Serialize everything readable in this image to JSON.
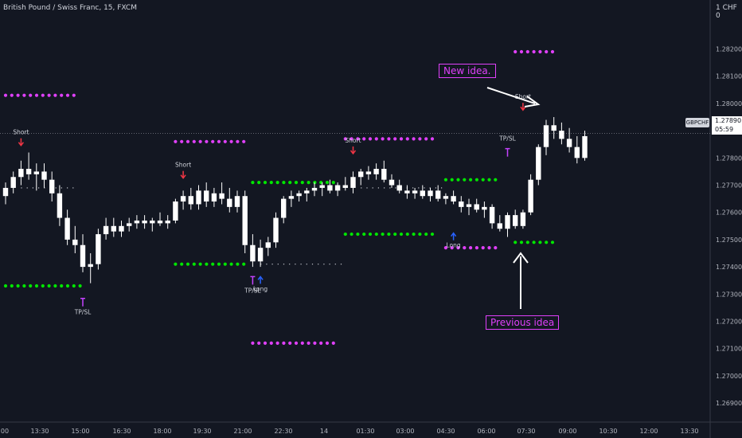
{
  "header": {
    "title": "British Pound / Swiss Franc, 15, FXCM",
    "currency": "1 CHF 0"
  },
  "price_axis": {
    "symbol": "GBPCHF",
    "last_price": "1.27890",
    "countdown": "05:59"
  },
  "annotations": {
    "new_idea": "New idea.",
    "previous_idea": "Previous idea"
  },
  "colors": {
    "background": "#131722",
    "candle": "#ffffff",
    "target_dots": "#e040fb",
    "stop_dots": "#00e600",
    "short_arrow": "#f23645",
    "long_arrow": "#2962ff",
    "tpsl_marker": "#c542ff",
    "annotation": "#e040fb"
  },
  "chart_data": {
    "type": "candlestick",
    "y_ticks": [
      "1.28200",
      "1.28100",
      "1.28000",
      "1.27900",
      "1.27800",
      "1.27700",
      "1.27600",
      "1.27500",
      "1.27400",
      "1.27300",
      "1.27200",
      "1.27100",
      "1.27000",
      "1.26900"
    ],
    "x_ticks": [
      "00",
      "13:30",
      "15:00",
      "16:30",
      "18:00",
      "19:30",
      "21:00",
      "22:30",
      "14",
      "01:30",
      "03:00",
      "04:30",
      "06:00",
      "07:30",
      "09:00",
      "10:30",
      "12:00",
      "13:30"
    ],
    "ylim": [
      1.2683,
      1.2838
    ],
    "current_price": 1.2789,
    "candles": [
      [
        1.2766,
        1.2771,
        1.2763,
        1.2769
      ],
      [
        1.2769,
        1.2775,
        1.2767,
        1.2773
      ],
      [
        1.2773,
        1.2779,
        1.277,
        1.2776
      ],
      [
        1.2776,
        1.2782,
        1.2772,
        1.2774
      ],
      [
        1.2774,
        1.2778,
        1.2768,
        1.2775
      ],
      [
        1.2775,
        1.2778,
        1.2769,
        1.2772
      ],
      [
        1.2772,
        1.2775,
        1.2764,
        1.2767
      ],
      [
        1.2767,
        1.277,
        1.2755,
        1.2758
      ],
      [
        1.2758,
        1.2761,
        1.2748,
        1.275
      ],
      [
        1.275,
        1.2755,
        1.2745,
        1.2748
      ],
      [
        1.2748,
        1.2752,
        1.2738,
        1.274
      ],
      [
        1.274,
        1.2745,
        1.2734,
        1.2741
      ],
      [
        1.2741,
        1.2754,
        1.2739,
        1.2752
      ],
      [
        1.2752,
        1.2758,
        1.275,
        1.2755
      ],
      [
        1.2755,
        1.2758,
        1.2751,
        1.2753
      ],
      [
        1.2753,
        1.2757,
        1.2751,
        1.2755
      ],
      [
        1.2755,
        1.2758,
        1.2753,
        1.2756
      ],
      [
        1.2756,
        1.2759,
        1.2754,
        1.2757
      ],
      [
        1.2757,
        1.2759,
        1.2754,
        1.2756
      ],
      [
        1.2756,
        1.2758,
        1.2753,
        1.2757
      ],
      [
        1.2757,
        1.276,
        1.2755,
        1.2756
      ],
      [
        1.2756,
        1.2759,
        1.2754,
        1.2757
      ],
      [
        1.2757,
        1.2765,
        1.2756,
        1.2764
      ],
      [
        1.2764,
        1.2768,
        1.2761,
        1.2766
      ],
      [
        1.2766,
        1.2769,
        1.2761,
        1.2763
      ],
      [
        1.2763,
        1.277,
        1.2761,
        1.2768
      ],
      [
        1.2768,
        1.2771,
        1.2762,
        1.2764
      ],
      [
        1.2764,
        1.2769,
        1.2762,
        1.2767
      ],
      [
        1.2767,
        1.2771,
        1.2763,
        1.2765
      ],
      [
        1.2765,
        1.2769,
        1.276,
        1.2762
      ],
      [
        1.2762,
        1.2768,
        1.276,
        1.2766
      ],
      [
        1.2766,
        1.2768,
        1.2745,
        1.2748
      ],
      [
        1.2748,
        1.2752,
        1.274,
        1.2742
      ],
      [
        1.2742,
        1.275,
        1.274,
        1.2747
      ],
      [
        1.2747,
        1.2751,
        1.2744,
        1.2749
      ],
      [
        1.2749,
        1.276,
        1.2747,
        1.2758
      ],
      [
        1.2758,
        1.2766,
        1.2756,
        1.2765
      ],
      [
        1.2765,
        1.2768,
        1.2762,
        1.2766
      ],
      [
        1.2766,
        1.2768,
        1.2764,
        1.2767
      ],
      [
        1.2767,
        1.2769,
        1.2764,
        1.2768
      ],
      [
        1.2768,
        1.2771,
        1.2766,
        1.2769
      ],
      [
        1.2769,
        1.2771,
        1.2766,
        1.277
      ],
      [
        1.277,
        1.2772,
        1.2767,
        1.2768
      ],
      [
        1.2768,
        1.2771,
        1.2766,
        1.277
      ],
      [
        1.277,
        1.2773,
        1.2768,
        1.2769
      ],
      [
        1.2769,
        1.2775,
        1.2767,
        1.2773
      ],
      [
        1.2773,
        1.2776,
        1.277,
        1.2775
      ],
      [
        1.2775,
        1.2777,
        1.2772,
        1.2774
      ],
      [
        1.2774,
        1.2778,
        1.2772,
        1.2776
      ],
      [
        1.2776,
        1.2779,
        1.2771,
        1.2772
      ],
      [
        1.2772,
        1.2774,
        1.2769,
        1.277
      ],
      [
        1.277,
        1.2772,
        1.2767,
        1.2768
      ],
      [
        1.2768,
        1.277,
        1.2765,
        1.2767
      ],
      [
        1.2767,
        1.2769,
        1.2765,
        1.2768
      ],
      [
        1.2768,
        1.277,
        1.2765,
        1.2766
      ],
      [
        1.2766,
        1.2769,
        1.2764,
        1.2768
      ],
      [
        1.2768,
        1.277,
        1.2764,
        1.2765
      ],
      [
        1.2765,
        1.2767,
        1.2763,
        1.2766
      ],
      [
        1.2766,
        1.2768,
        1.2763,
        1.2764
      ],
      [
        1.2764,
        1.2766,
        1.276,
        1.2762
      ],
      [
        1.2762,
        1.2765,
        1.2759,
        1.2763
      ],
      [
        1.2763,
        1.2765,
        1.276,
        1.2761
      ],
      [
        1.2761,
        1.2764,
        1.2758,
        1.2762
      ],
      [
        1.2762,
        1.2763,
        1.2754,
        1.2756
      ],
      [
        1.2756,
        1.2759,
        1.2753,
        1.2754
      ],
      [
        1.2754,
        1.276,
        1.2751,
        1.2759
      ],
      [
        1.2759,
        1.2761,
        1.2754,
        1.2755
      ],
      [
        1.2755,
        1.2761,
        1.2754,
        1.276
      ],
      [
        1.276,
        1.2774,
        1.2759,
        1.2772
      ],
      [
        1.2772,
        1.2785,
        1.277,
        1.2784
      ],
      [
        1.2784,
        1.2794,
        1.2781,
        1.2792
      ],
      [
        1.2792,
        1.2795,
        1.2787,
        1.279
      ],
      [
        1.279,
        1.2793,
        1.2785,
        1.2787
      ],
      [
        1.2787,
        1.2791,
        1.2782,
        1.2784
      ],
      [
        1.2784,
        1.2788,
        1.2778,
        1.278
      ],
      [
        1.278,
        1.279,
        1.2779,
        1.2788
      ]
    ],
    "dot_levels": [
      {
        "color": "target",
        "y": 1.2803,
        "x_from": 0,
        "x_to": 9
      },
      {
        "color": "stop",
        "y": 1.2733,
        "x_from": 0,
        "x_to": 10
      },
      {
        "color": "target",
        "y": 1.2786,
        "x_from": 22,
        "x_to": 31
      },
      {
        "color": "stop",
        "y": 1.2741,
        "x_from": 22,
        "x_to": 31
      },
      {
        "color": "stop",
        "y": 1.2771,
        "x_from": 32,
        "x_to": 43
      },
      {
        "color": "target",
        "y": 1.2712,
        "x_from": 32,
        "x_to": 43
      },
      {
        "color": "target",
        "y": 1.2787,
        "x_from": 44,
        "x_to": 56
      },
      {
        "color": "stop",
        "y": 1.2752,
        "x_from": 44,
        "x_to": 56
      },
      {
        "color": "stop",
        "y": 1.2772,
        "x_from": 57,
        "x_to": 64
      },
      {
        "color": "target",
        "y": 1.2747,
        "x_from": 57,
        "x_to": 64
      },
      {
        "color": "target",
        "y": 1.2819,
        "x_from": 66,
        "x_to": 71
      },
      {
        "color": "stop",
        "y": 1.2749,
        "x_from": 66,
        "x_to": 71
      }
    ],
    "entry_lines": [
      {
        "y": 1.2769,
        "x_from": 2,
        "x_to": 9
      },
      {
        "y": 1.2741,
        "x_from": 33,
        "x_to": 44
      },
      {
        "y": 1.2769,
        "x_from": 46,
        "x_to": 57
      }
    ],
    "signals": [
      {
        "kind": "short",
        "label": "Short",
        "index": 2,
        "y": 1.2784
      },
      {
        "kind": "tpsl",
        "label": "TP/SL",
        "index": 10,
        "y": 1.2729
      },
      {
        "kind": "short",
        "label": "Short",
        "index": 23,
        "y": 1.2772
      },
      {
        "kind": "tpsl",
        "label": "TP/SL",
        "index": 32,
        "y": 1.2737
      },
      {
        "kind": "long",
        "label": "Long",
        "index": 33,
        "y": 1.2737
      },
      {
        "kind": "short",
        "label": "Short",
        "index": 45,
        "y": 1.2781
      },
      {
        "kind": "long",
        "label": "Long",
        "index": 58,
        "y": 1.2753
      },
      {
        "kind": "tpsl",
        "label": "TP/SL",
        "index": 65,
        "y": 1.2784
      },
      {
        "kind": "short",
        "label": "Short",
        "index": 67,
        "y": 1.2797
      }
    ]
  }
}
